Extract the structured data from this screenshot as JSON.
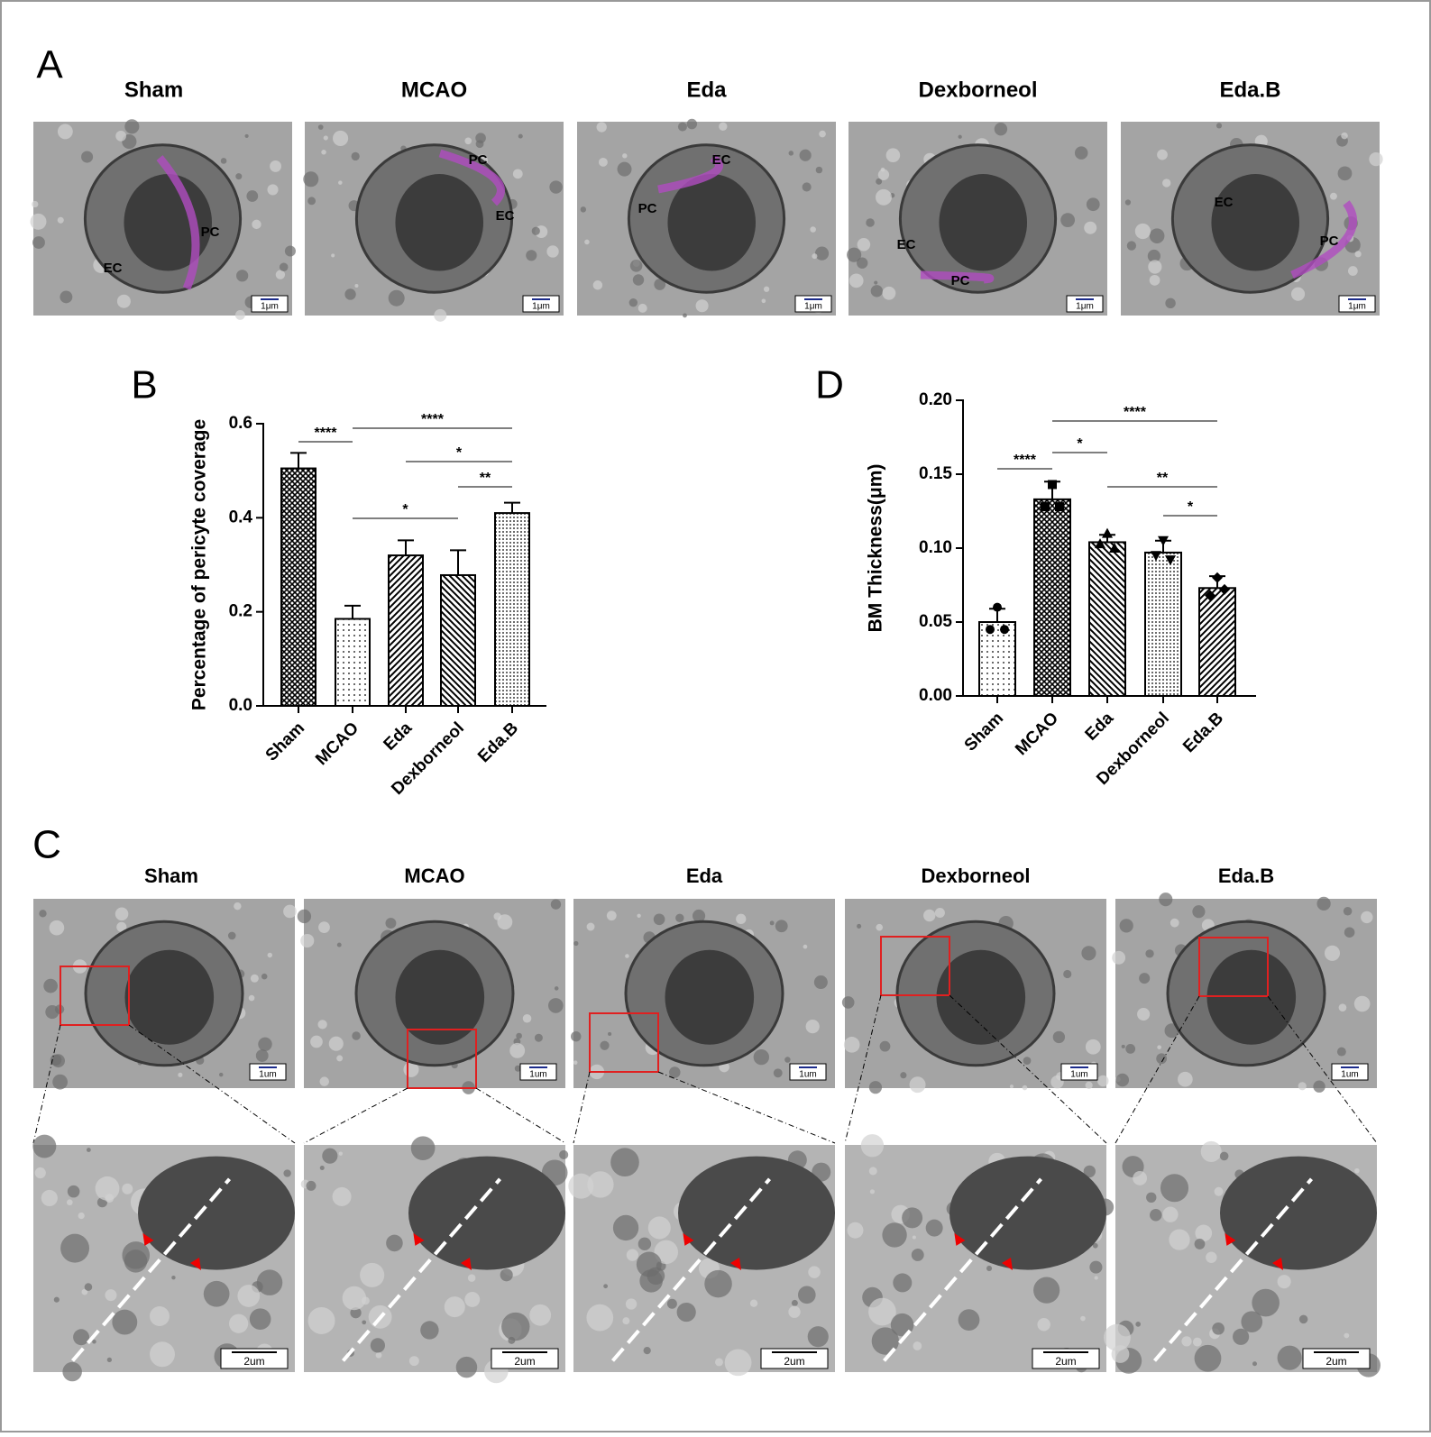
{
  "panel_a": {
    "label": "A",
    "titles": [
      "Sham",
      "MCAO",
      "Eda",
      "Dexborneol",
      "Eda.B"
    ],
    "annotations": [
      [
        "EC",
        "PC"
      ],
      [
        "PC",
        "EC"
      ],
      [
        "EC",
        "PC"
      ],
      [
        "EC",
        "PC"
      ],
      [
        "EC",
        "PC"
      ]
    ],
    "scale_bar": "1μm"
  },
  "panel_c": {
    "label": "C",
    "titles": [
      "Sham",
      "MCAO",
      "Eda",
      "Dexborneol",
      "Eda.B"
    ],
    "scale_bar_top": "1um",
    "scale_bar_bottom": "2um"
  },
  "chart_data": [
    {
      "panel": "B",
      "type": "bar",
      "y_label": "Percentage of pericyte coverage",
      "categories": [
        "Sham",
        "MCAO",
        "Eda",
        "Dexborneol",
        "Eda.B"
      ],
      "values": [
        0.505,
        0.185,
        0.32,
        0.278,
        0.41
      ],
      "errors": [
        0.033,
        0.028,
        0.032,
        0.053,
        0.022
      ],
      "ylim": [
        0,
        0.6
      ],
      "yticks": [
        {
          "value": 0,
          "label": "0.0"
        },
        0.2,
        0.4,
        0.6
      ],
      "significance": [
        {
          "between": [
            0,
            1
          ],
          "label": "****"
        },
        {
          "between": [
            1,
            4
          ],
          "label": "****"
        },
        {
          "between": [
            2,
            4
          ],
          "label": "*"
        },
        {
          "between": [
            3,
            4
          ],
          "label": "**"
        },
        {
          "between": [
            1,
            3
          ],
          "label": "*"
        }
      ]
    },
    {
      "panel": "D",
      "type": "bar",
      "y_label": "BM Thickness(μm)",
      "categories": [
        "Sham",
        "MCAO",
        "Eda",
        "Dexborneol",
        "Eda.B"
      ],
      "values": [
        0.05,
        0.133,
        0.104,
        0.097,
        0.073
      ],
      "errors": [
        0.009,
        0.012,
        0.005,
        0.008,
        0.008
      ],
      "points": [
        [
          0.06,
          0.045,
          0.045
        ],
        [
          0.143,
          0.128,
          0.128
        ],
        [
          0.11,
          0.103,
          0.1
        ],
        [
          0.105,
          0.095,
          0.092
        ],
        [
          0.08,
          0.068,
          0.072
        ]
      ],
      "ylim": [
        0,
        0.2
      ],
      "yticks": [
        {
          "value": 0,
          "label": "0.00"
        },
        {
          "value": 0.05,
          "label": "0.05"
        },
        {
          "value": 0.1,
          "label": "0.10"
        },
        {
          "value": 0.15,
          "label": "0.15"
        },
        {
          "value": 0.2,
          "label": "0.20"
        }
      ],
      "significance": [
        {
          "between": [
            0,
            1
          ],
          "label": "****"
        },
        {
          "between": [
            1,
            4
          ],
          "label": "****"
        },
        {
          "between": [
            1,
            2
          ],
          "label": "*"
        },
        {
          "between": [
            2,
            4
          ],
          "label": "**"
        },
        {
          "between": [
            3,
            4
          ],
          "label": "*"
        }
      ]
    }
  ]
}
